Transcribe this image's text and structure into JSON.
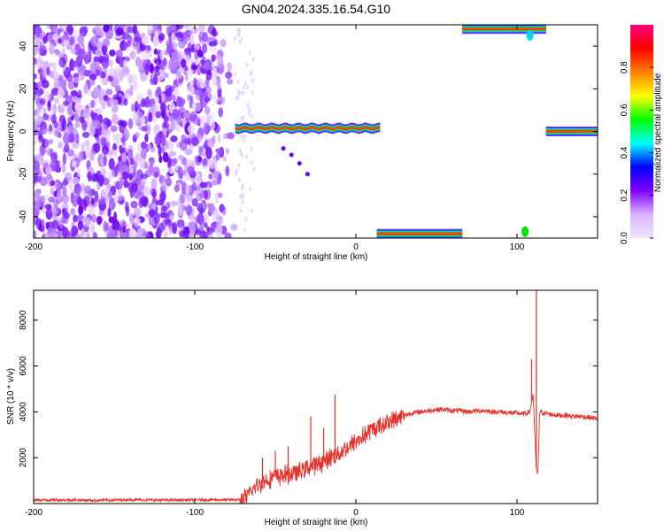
{
  "title": "GN04.2024.335.16.54.G10",
  "chart_data": [
    {
      "type": "heatmap",
      "xlabel": "Height of straight line (km)",
      "ylabel": "Frequency (Hz)",
      "xlim": [
        -200,
        150
      ],
      "ylim": [
        -50,
        50
      ],
      "xticks": [
        -200,
        -100,
        0,
        100
      ],
      "yticks": [
        -40,
        -20,
        0,
        20,
        40
      ],
      "colorbar": {
        "label": "Normalized spectral amplitude",
        "range": [
          0.0,
          1.0
        ],
        "ticks": [
          "0.0",
          "0.2",
          "0.4",
          "0.6",
          "0.8"
        ],
        "tick_values": [
          0,
          0.2,
          0.4,
          0.6,
          0.8
        ],
        "colors": [
          "#f2e6ff",
          "#d9b3ff",
          "#8000ff",
          "#0000ff",
          "#00ffff",
          "#00ff00",
          "#ffff00",
          "#ff8000",
          "#ff0000",
          "#ff0080"
        ]
      },
      "features": [
        {
          "name": "noise region",
          "x_range": [
            -200,
            -75
          ],
          "y_range": [
            -50,
            50
          ],
          "amplitude": 0.15
        },
        {
          "name": "carrier line",
          "x_range": [
            -75,
            15
          ],
          "y_center": 1.5,
          "amplitude": 0.9
        },
        {
          "name": "carrier line",
          "x_range": [
            118,
            150
          ],
          "y_center": 0,
          "amplitude": 1.0
        },
        {
          "name": "aliased carrier (top)",
          "x_range": [
            66,
            118
          ],
          "y_center": 48,
          "amplitude": 1.0
        },
        {
          "name": "aliased carrier (bottom)",
          "x_range": [
            13,
            66
          ],
          "y_center": -48,
          "amplitude": 1.0
        }
      ]
    },
    {
      "type": "line",
      "xlabel": "Height of straight line (km)",
      "ylabel": "SNR (10 * v/v)",
      "xlim": [
        -200,
        150
      ],
      "ylim": [
        0,
        9300
      ],
      "xticks": [
        -200,
        -100,
        0,
        100
      ],
      "yticks": [
        2000,
        4000,
        6000,
        8000
      ],
      "color": "#e8302a",
      "series": [
        {
          "x": [
            -200,
            -180,
            -160,
            -140,
            -120,
            -100,
            -90,
            -80,
            -72,
            -68,
            -64,
            -60,
            -56,
            -52,
            -48,
            -44,
            -40,
            -36,
            -32,
            -28,
            -24,
            -20,
            -16,
            -12,
            -8,
            -4,
            0,
            5,
            10,
            15,
            20,
            25,
            30,
            35,
            40,
            45,
            50,
            55,
            60,
            65,
            70,
            75,
            80,
            85,
            90,
            95,
            100,
            104,
            108,
            110,
            111,
            112,
            113,
            114,
            116,
            120,
            125,
            130,
            135,
            140,
            145,
            150
          ],
          "y": [
            150,
            160,
            140,
            170,
            150,
            160,
            170,
            160,
            170,
            250,
            600,
            850,
            1000,
            1150,
            1200,
            1250,
            1300,
            1350,
            1500,
            1650,
            1700,
            1850,
            2000,
            2150,
            2300,
            2500,
            2700,
            2950,
            3200,
            3400,
            3550,
            3700,
            3850,
            3950,
            4000,
            4050,
            4100,
            4100,
            4050,
            4050,
            4000,
            4050,
            4050,
            4000,
            4000,
            3950,
            3950,
            3900,
            4000,
            4800,
            3000,
            1500,
            1200,
            4000,
            3950,
            3900,
            3850,
            3850,
            3800,
            3800,
            3750,
            3700
          ]
        }
      ],
      "spikes": [
        {
          "x": -58,
          "y": 2000
        },
        {
          "x": -50,
          "y": 2300
        },
        {
          "x": -42,
          "y": 2500
        },
        {
          "x": -28,
          "y": 3800
        },
        {
          "x": -20,
          "y": 3300
        },
        {
          "x": -13,
          "y": 4750
        },
        {
          "x": 109,
          "y": 6300
        },
        {
          "x": 112,
          "y": 9300
        }
      ]
    }
  ]
}
